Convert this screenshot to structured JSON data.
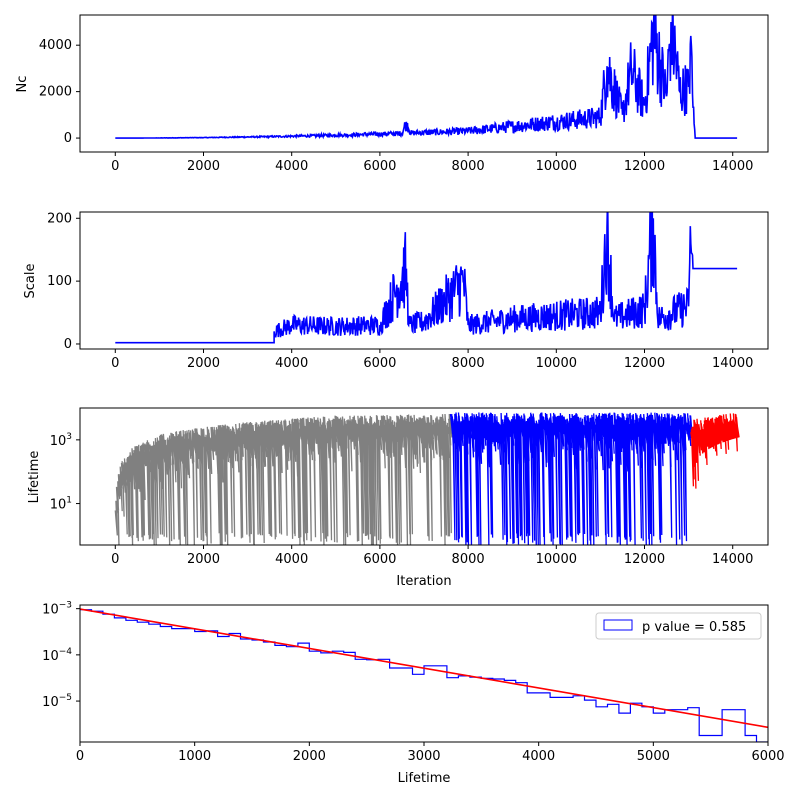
{
  "colors": {
    "primary": "#0000ff",
    "early": "#808080",
    "late": "#ff0000",
    "fit": "#ff0000"
  },
  "chart_data": [
    {
      "type": "line",
      "title": "",
      "xlabel": "",
      "ylabel": "Nc",
      "xlim": [
        -800,
        14800
      ],
      "ylim": [
        -600,
        5300
      ],
      "xticks": [
        0,
        2000,
        4000,
        6000,
        8000,
        10000,
        12000,
        14000
      ],
      "yticks": [
        0,
        2000,
        4000
      ],
      "series": [
        {
          "color": "#0000ff",
          "x": [
            0,
            600,
            2000,
            3500,
            5000,
            6500,
            6600,
            6700,
            8000,
            9000,
            10000,
            11000,
            11150,
            11500,
            11700,
            12000,
            12200,
            12500,
            12600,
            12800,
            13000,
            13050,
            13100,
            13150,
            14100
          ],
          "y": [
            0,
            0,
            20,
            60,
            120,
            200,
            700,
            220,
            300,
            500,
            700,
            900,
            3100,
            1000,
            2900,
            1400,
            4600,
            1800,
            5000,
            2000,
            2200,
            4400,
            1300,
            0,
            0
          ]
        }
      ]
    },
    {
      "type": "line",
      "title": "",
      "xlabel": "",
      "ylabel": "Scale",
      "xlim": [
        -800,
        14800
      ],
      "ylim": [
        -8,
        210
      ],
      "xticks": [
        0,
        2000,
        4000,
        6000,
        8000,
        10000,
        12000,
        14000
      ],
      "yticks": [
        0,
        100,
        200
      ],
      "series": [
        {
          "color": "#0000ff",
          "x": [
            0,
            3600,
            3600,
            4000,
            5000,
            6000,
            6600,
            6650,
            7000,
            7900,
            8000,
            9000,
            10000,
            11000,
            11150,
            11300,
            12000,
            12200,
            12300,
            13000,
            13050,
            13100,
            14100
          ],
          "y": [
            2,
            2,
            20,
            30,
            28,
            30,
            120,
            30,
            35,
            100,
            30,
            40,
            45,
            50,
            185,
            40,
            55,
            200,
            40,
            60,
            160,
            120,
            120
          ]
        }
      ]
    },
    {
      "type": "line",
      "title": "",
      "xlabel": "Iteration",
      "ylabel": "Lifetime",
      "xlim": [
        -800,
        14800
      ],
      "ylim_log": [
        0.5,
        10000
      ],
      "yscale": "log",
      "xticks": [
        0,
        2000,
        4000,
        6000,
        8000,
        10000,
        12000,
        14000
      ],
      "ytick_labels": [
        "10^1",
        "10^3"
      ],
      "series": [
        {
          "color": "#808080",
          "x_range": [
            0,
            7600
          ],
          "envelope_upper": [
            [
              0,
              5
            ],
            [
              200,
              200
            ],
            [
              1000,
              1000
            ],
            [
              3000,
              2500
            ],
            [
              5000,
              4000
            ],
            [
              7600,
              4500
            ]
          ],
          "envelope_lower": [
            [
              0,
              1
            ],
            [
              7600,
              1
            ]
          ]
        },
        {
          "color": "#0000ff",
          "x_range": [
            7600,
            13050
          ],
          "envelope_upper": [
            [
              7600,
              5000
            ],
            [
              13050,
              5000
            ]
          ],
          "envelope_lower": [
            [
              7600,
              1
            ],
            [
              13050,
              1
            ]
          ]
        },
        {
          "color": "#ff0000",
          "x_range": [
            13050,
            14100
          ],
          "envelope_upper": [
            [
              13050,
              3000
            ],
            [
              14100,
              5000
            ]
          ],
          "envelope_lower": [
            [
              13050,
              5
            ],
            [
              13200,
              300
            ],
            [
              14100,
              1200
            ]
          ]
        }
      ]
    },
    {
      "type": "histogram",
      "title": "",
      "xlabel": "Lifetime",
      "ylabel": "",
      "xlim": [
        0,
        6000
      ],
      "yscale": "log",
      "ylim_log": [
        1.3e-06,
        0.0012
      ],
      "xticks": [
        0,
        1000,
        2000,
        3000,
        4000,
        5000,
        6000
      ],
      "ytick_labels": [
        "10^-3",
        "10^-4",
        "10^-5"
      ],
      "legend": {
        "label": "p value = 0.585",
        "placement": "top-right"
      },
      "bin_width": 100,
      "bin_start": 0,
      "hist_values": [
        0.00095,
        0.00088,
        0.00076,
        0.00063,
        0.00056,
        0.00051,
        0.00046,
        0.00041,
        0.00037,
        0.00037,
        0.00032,
        0.00033,
        0.00025,
        0.00029,
        0.00022,
        0.00021,
        0.00019,
        0.00016,
        0.00015,
        0.00018,
        0.00012,
        0.00011,
        0.00012,
        0.000113,
        8e-05,
        7.8e-05,
        8e-05,
        5.2e-05,
        5.2e-05,
        3.8e-05,
        5.8e-05,
        5.8e-05,
        3.2e-05,
        3.5e-05,
        3.3e-05,
        3.1e-05,
        3e-05,
        2.8e-05,
        2.5e-05,
        1.5e-05,
        1.5e-05,
        1.2e-05,
        1.2e-05,
        1.3e-05,
        1.05e-05,
        7.5e-06,
        8.5e-06,
        5.5e-06,
        9e-06,
        7.5e-06,
        5.5e-06,
        6.5e-06,
        6.5e-06,
        7.2e-06,
        1.8e-06,
        1.8e-06,
        6.5e-06,
        6.5e-06,
        1.8e-06,
        1.3e-06
      ],
      "fit_line": {
        "color": "#ff0000",
        "x": [
          0,
          6000
        ],
        "y": [
          0.00098,
          2.7e-06
        ]
      }
    }
  ]
}
